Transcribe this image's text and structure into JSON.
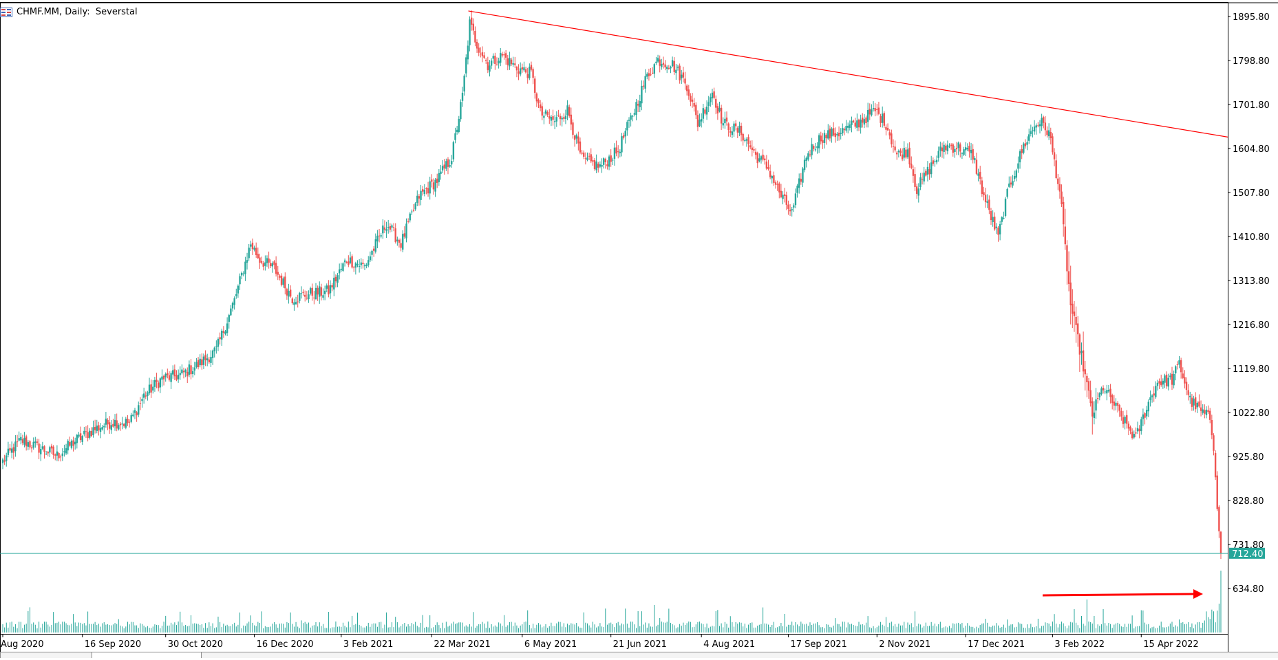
{
  "window": {
    "title": "CHMF.MM, Daily:  Severstal"
  },
  "colors": {
    "up": "#26a69a",
    "down": "#ef5350",
    "wick": "#555555",
    "trendline": "#ff0000",
    "hline": "#26a69a",
    "price_label_bg": "#26a69a",
    "arrow": "#ff0000"
  },
  "icons": [
    "chart-window-icon"
  ],
  "chart_data": {
    "type": "candlestick",
    "symbol": "CHMF.MM",
    "timeframe": "Daily",
    "name": "Severstal",
    "y_ticks": [
      "1895.80",
      "1798.80",
      "1701.80",
      "1604.80",
      "1507.80",
      "1410.80",
      "1313.80",
      "1216.80",
      "1119.80",
      "1022.80",
      "925.80",
      "828.80",
      "731.80",
      "634.80"
    ],
    "x_ticks": [
      "Aug 2020",
      "16 Sep 2020",
      "30 Oct 2020",
      "16 Dec 2020",
      "3 Feb 2021",
      "22 Mar 2021",
      "6 May 2021",
      "21 Jun 2021",
      "4 Aug 2021",
      "17 Sep 2021",
      "2 Nov 2021",
      "17 Dec 2021",
      "3 Feb 2022",
      "15 Apr 2022"
    ],
    "ylim": [
      566,
      1910
    ],
    "horizontal_line": {
      "value": 712.4,
      "label": "712.40"
    },
    "trendline": {
      "from": {
        "date": "12 Apr 2021",
        "value": 1908
      },
      "to": {
        "date": "14 Jun 2022",
        "value": 1630
      }
    },
    "close_anchors": [
      [
        0,
        915
      ],
      [
        10,
        962
      ],
      [
        20,
        945
      ],
      [
        30,
        928
      ],
      [
        40,
        960
      ],
      [
        50,
        985
      ],
      [
        60,
        1002
      ],
      [
        70,
        1000
      ],
      [
        78,
        1060
      ],
      [
        88,
        1098
      ],
      [
        98,
        1105
      ],
      [
        108,
        1128
      ],
      [
        118,
        1160
      ],
      [
        128,
        1270
      ],
      [
        137,
        1395
      ],
      [
        142,
        1360
      ],
      [
        150,
        1340
      ],
      [
        160,
        1275
      ],
      [
        170,
        1285
      ],
      [
        180,
        1290
      ],
      [
        190,
        1360
      ],
      [
        200,
        1345
      ],
      [
        212,
        1440
      ],
      [
        220,
        1395
      ],
      [
        230,
        1500
      ],
      [
        240,
        1535
      ],
      [
        248,
        1585
      ],
      [
        254,
        1720
      ],
      [
        258,
        1880
      ],
      [
        262,
        1835
      ],
      [
        268,
        1790
      ],
      [
        276,
        1810
      ],
      [
        284,
        1782
      ],
      [
        292,
        1770
      ],
      [
        297,
        1682
      ],
      [
        305,
        1665
      ],
      [
        312,
        1690
      ],
      [
        320,
        1580
      ],
      [
        330,
        1565
      ],
      [
        340,
        1600
      ],
      [
        348,
        1680
      ],
      [
        356,
        1765
      ],
      [
        362,
        1800
      ],
      [
        370,
        1790
      ],
      [
        378,
        1745
      ],
      [
        384,
        1660
      ],
      [
        392,
        1730
      ],
      [
        398,
        1660
      ],
      [
        408,
        1640
      ],
      [
        416,
        1590
      ],
      [
        423,
        1560
      ],
      [
        430,
        1500
      ],
      [
        436,
        1462
      ],
      [
        444,
        1590
      ],
      [
        452,
        1630
      ],
      [
        462,
        1640
      ],
      [
        472,
        1660
      ],
      [
        482,
        1688
      ],
      [
        488,
        1660
      ],
      [
        494,
        1590
      ],
      [
        500,
        1600
      ],
      [
        505,
        1515
      ],
      [
        512,
        1560
      ],
      [
        520,
        1610
      ],
      [
        528,
        1608
      ],
      [
        536,
        1590
      ],
      [
        542,
        1500
      ],
      [
        550,
        1410
      ],
      [
        556,
        1520
      ],
      [
        564,
        1610
      ],
      [
        570,
        1655
      ],
      [
        573,
        1665
      ],
      [
        578,
        1640
      ],
      [
        584,
        1510
      ],
      [
        590,
        1260
      ],
      [
        596,
        1145
      ],
      [
        602,
        1018
      ],
      [
        608,
        1080
      ],
      [
        614,
        1040
      ],
      [
        620,
        1000
      ],
      [
        626,
        965
      ],
      [
        632,
        1035
      ],
      [
        638,
        1090
      ],
      [
        646,
        1095
      ],
      [
        650,
        1130
      ],
      [
        656,
        1050
      ],
      [
        662,
        1025
      ],
      [
        667,
        1010
      ],
      [
        669,
        950
      ],
      [
        671,
        810
      ],
      [
        673,
        712
      ]
    ],
    "volume_spikes": [
      {
        "x_tick": "3 Feb 2022",
        "note": "elevated"
      },
      {
        "x_tick": "after 15 Apr 2022",
        "note": "largest, latest bar"
      }
    ],
    "annotation": "red arrow pointing right toward last volume bar"
  }
}
